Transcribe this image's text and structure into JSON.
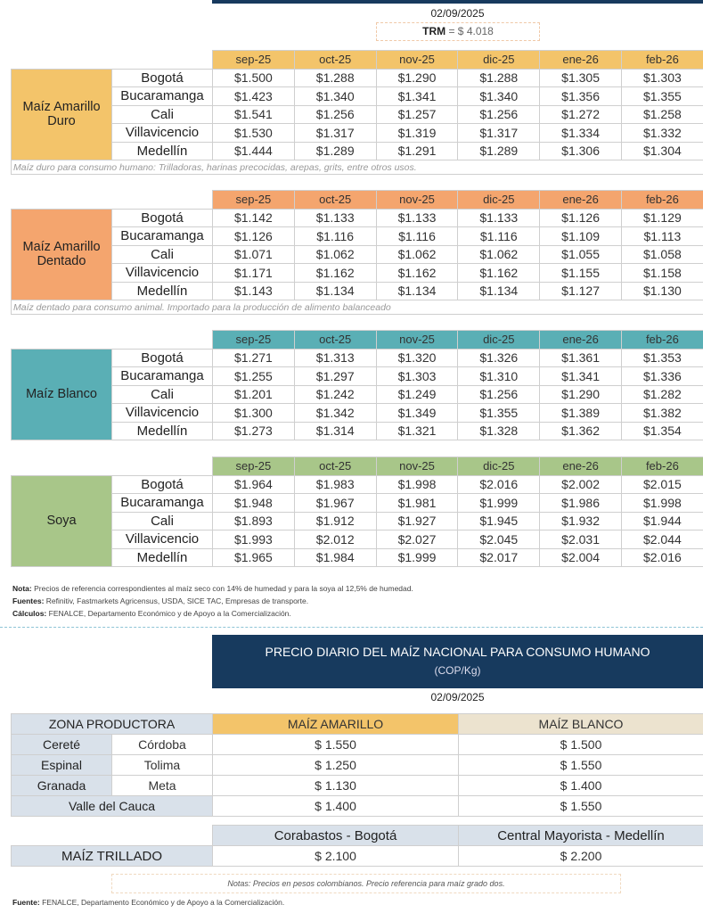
{
  "header": {
    "date": "02/09/2025",
    "trm_label": "TRM",
    "trm_value": "= $ 4.018"
  },
  "months": [
    "sep-25",
    "oct-25",
    "nov-25",
    "dic-25",
    "ene-26",
    "feb-26"
  ],
  "cities": [
    "Bogotá",
    "Bucaramanga",
    "Cali",
    "Villavicencio",
    "Medellín"
  ],
  "tables": [
    {
      "product": "Maíz Amarillo Duro",
      "color": "#f3c46a",
      "rows": [
        [
          "$1.500",
          "$1.288",
          "$1.290",
          "$1.288",
          "$1.305",
          "$1.303"
        ],
        [
          "$1.423",
          "$1.340",
          "$1.341",
          "$1.340",
          "$1.356",
          "$1.355"
        ],
        [
          "$1.541",
          "$1.256",
          "$1.257",
          "$1.256",
          "$1.272",
          "$1.258"
        ],
        [
          "$1.530",
          "$1.317",
          "$1.319",
          "$1.317",
          "$1.334",
          "$1.332"
        ],
        [
          "$1.444",
          "$1.289",
          "$1.291",
          "$1.289",
          "$1.306",
          "$1.304"
        ]
      ],
      "note": "Maíz duro para consumo humano: Trilladoras, harinas precocidas, arepas, grits, entre otros usos."
    },
    {
      "product": "Maíz Amarillo Dentado",
      "color": "#f4a56e",
      "rows": [
        [
          "$1.142",
          "$1.133",
          "$1.133",
          "$1.133",
          "$1.126",
          "$1.129"
        ],
        [
          "$1.126",
          "$1.116",
          "$1.116",
          "$1.116",
          "$1.109",
          "$1.113"
        ],
        [
          "$1.071",
          "$1.062",
          "$1.062",
          "$1.062",
          "$1.055",
          "$1.058"
        ],
        [
          "$1.171",
          "$1.162",
          "$1.162",
          "$1.162",
          "$1.155",
          "$1.158"
        ],
        [
          "$1.143",
          "$1.134",
          "$1.134",
          "$1.134",
          "$1.127",
          "$1.130"
        ]
      ],
      "note": "Maíz dentado para consumo animal. Importado para la producción de alimento balanceado"
    },
    {
      "product": "Maíz Blanco",
      "color": "#5aafb5",
      "rows": [
        [
          "$1.271",
          "$1.313",
          "$1.320",
          "$1.326",
          "$1.361",
          "$1.353"
        ],
        [
          "$1.255",
          "$1.297",
          "$1.303",
          "$1.310",
          "$1.341",
          "$1.336"
        ],
        [
          "$1.201",
          "$1.242",
          "$1.249",
          "$1.256",
          "$1.290",
          "$1.282"
        ],
        [
          "$1.300",
          "$1.342",
          "$1.349",
          "$1.355",
          "$1.389",
          "$1.382"
        ],
        [
          "$1.273",
          "$1.314",
          "$1.321",
          "$1.328",
          "$1.362",
          "$1.354"
        ]
      ],
      "note": null
    },
    {
      "product": "Soya",
      "color": "#a8c689",
      "rows": [
        [
          "$1.964",
          "$1.983",
          "$1.998",
          "$2.016",
          "$2.002",
          "$2.015"
        ],
        [
          "$1.948",
          "$1.967",
          "$1.981",
          "$1.999",
          "$1.986",
          "$1.998"
        ],
        [
          "$1.893",
          "$1.912",
          "$1.927",
          "$1.945",
          "$1.932",
          "$1.944"
        ],
        [
          "$1.993",
          "$2.012",
          "$2.027",
          "$2.045",
          "$2.031",
          "$2.044"
        ],
        [
          "$1.965",
          "$1.984",
          "$1.999",
          "$2.017",
          "$2.004",
          "$2.016"
        ]
      ],
      "note": null
    }
  ],
  "footnotes": {
    "nota_label": "Nota:",
    "nota": "Precios de referencia correspondientes al maíz seco con 14% de humedad y para la soya al 12,5% de humedad.",
    "fuentes_label": "Fuentes:",
    "fuentes": "Refinitiv, Fastmarkets Agricensus, USDA, SICE TAC, Empresas de transporte.",
    "calculos_label": "Cálculos:",
    "calculos": "FENALCE, Departamento Económico y de Apoyo a la Comercialización."
  },
  "national": {
    "title": "PRECIO DIARIO DEL MAÍZ NACIONAL PARA CONSUMO HUMANO",
    "unit": "(COP/Kg)",
    "date": "02/09/2025",
    "headers": [
      "ZONA PRODUCTORA",
      "MAÍZ AMARILLO",
      "MAÍZ BLANCO"
    ],
    "rows": [
      {
        "zone": "Cereté",
        "dept": "Córdoba",
        "amarillo": "$ 1.550",
        "blanco": "$ 1.500"
      },
      {
        "zone": "Espinal",
        "dept": "Tolima",
        "amarillo": "$ 1.250",
        "blanco": "$ 1.550"
      },
      {
        "zone": "Granada",
        "dept": "Meta",
        "amarillo": "$ 1.130",
        "blanco": "$ 1.400"
      },
      {
        "zone": "Valle del Cauca",
        "dept": null,
        "amarillo": "$ 1.400",
        "blanco": "$ 1.550"
      }
    ],
    "trillado": {
      "markets": [
        "Corabastos - Bogotá",
        "Central Mayorista - Medellín"
      ],
      "label": "MAÍZ TRILLADO",
      "values": [
        "$ 2.100",
        "$ 2.200"
      ]
    },
    "notes": "Notas: Precios en pesos colombianos. Precio referencia para maíz grado dos.",
    "fuente_label": "Fuente:",
    "fuente": "FENALCE, Departamento Económico y de Apoyo a la Comercialización."
  }
}
